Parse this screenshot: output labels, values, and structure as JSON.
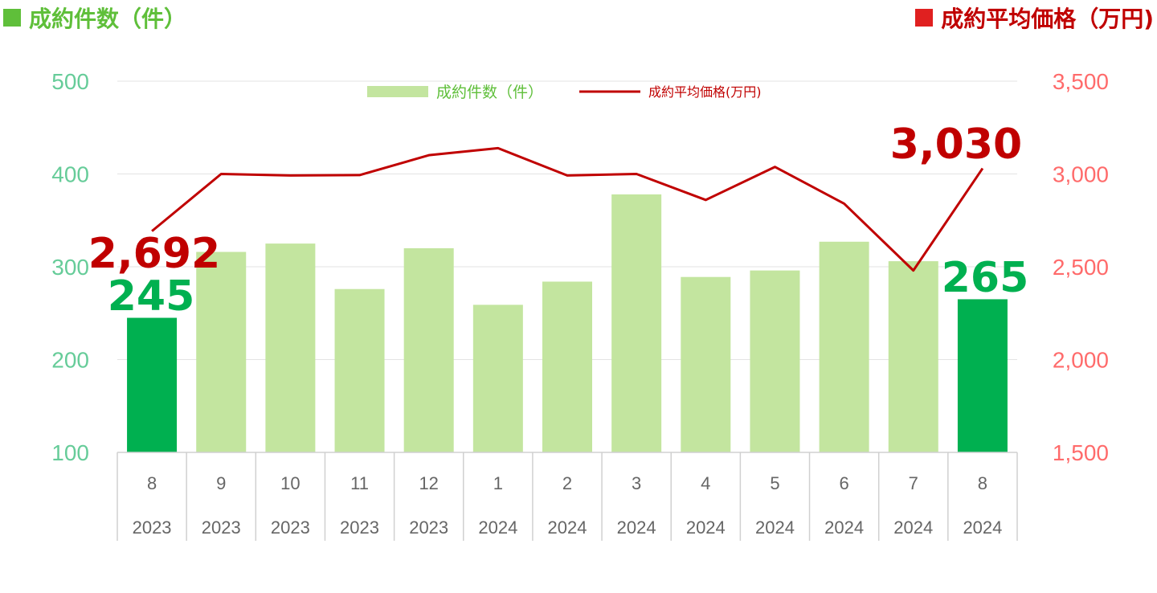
{
  "titles": {
    "left": "成約件数（件）",
    "right": "成約平均価格（万円)"
  },
  "colors": {
    "bar": "#c3e59f",
    "bar_highlight": "#00b050",
    "line": "#c00000",
    "left_axis": "#66cc99",
    "right_axis": "#ff6b6b"
  },
  "chart_data": {
    "type": "bar",
    "categories": [
      "8",
      "9",
      "10",
      "11",
      "12",
      "1",
      "2",
      "3",
      "4",
      "5",
      "6",
      "7",
      "8"
    ],
    "years": [
      "2023",
      "2023",
      "2023",
      "2023",
      "2023",
      "2024",
      "2024",
      "2024",
      "2024",
      "2024",
      "2024",
      "2024",
      "2024"
    ],
    "series": [
      {
        "name": "成約件数（件）",
        "type": "bar",
        "axis": "left",
        "values": [
          245,
          316,
          325,
          276,
          320,
          259,
          284,
          378,
          289,
          296,
          327,
          306,
          265
        ],
        "highlight": [
          0,
          12
        ]
      },
      {
        "name": "成約平均価格(万円)",
        "type": "line",
        "axis": "right",
        "values": [
          2692,
          3000,
          2992,
          2994,
          3101,
          3139,
          2992,
          3000,
          2860,
          3038,
          2840,
          2480,
          3030
        ]
      }
    ],
    "y_left": {
      "ylim": [
        100,
        500
      ],
      "ticks": [
        100,
        200,
        300,
        400,
        500
      ]
    },
    "y_right": {
      "ylim": [
        1500,
        3500
      ],
      "ticks": [
        "1,500",
        "2,000",
        "2,500",
        "3,000",
        "3,500"
      ]
    },
    "annotations": {
      "count_first": "245",
      "count_last": "265",
      "price_first": "2,692",
      "price_last": "3,030"
    },
    "grid": true,
    "legend": "top-center"
  }
}
